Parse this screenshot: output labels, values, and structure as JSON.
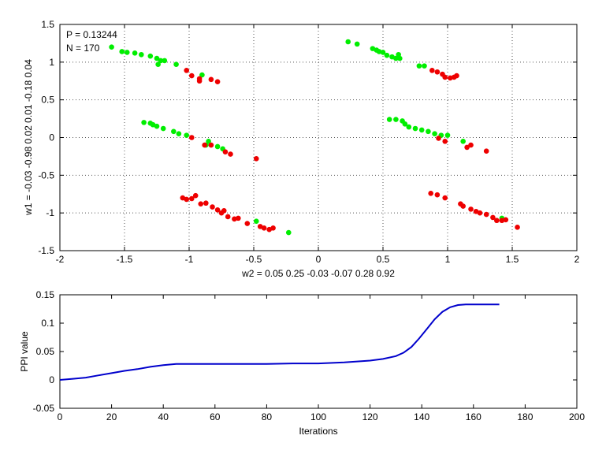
{
  "colors": {
    "background": "#ffffff",
    "green_points": "#00ee00",
    "red_points": "#ee0000",
    "line": "#0000cc",
    "grid": "#555555",
    "axis": "#000000"
  },
  "chart_data": [
    {
      "type": "scatter",
      "title": "",
      "annotations": [
        "P = 0.13244",
        "N = 170"
      ],
      "xlabel": "w2 = 0.05  0.25  -0.03  -0.07  0.28  0.92",
      "ylabel": "w1 = -0.03  -0.98  0.02  0.01  -0.18  0.04",
      "xlim": [
        -2,
        2
      ],
      "ylim": [
        -1.5,
        1.5
      ],
      "xticks": [
        "-2",
        "-1.5",
        "-1",
        "-0.5",
        "0",
        "0.5",
        "1",
        "1.5",
        "2"
      ],
      "yticks": [
        "1.5",
        "1",
        "0.5",
        "0",
        "-0.5",
        "-1",
        "-1.5"
      ],
      "grid": true,
      "series": [
        {
          "color": "green",
          "points": [
            [
              -1.6,
              1.2
            ],
            [
              -1.52,
              1.14
            ],
            [
              -1.48,
              1.13
            ],
            [
              -1.42,
              1.12
            ],
            [
              -1.37,
              1.1
            ],
            [
              -1.3,
              1.08
            ],
            [
              -1.25,
              1.05
            ],
            [
              -1.22,
              1.02
            ],
            [
              -1.24,
              0.97
            ],
            [
              -1.19,
              1.02
            ],
            [
              -1.1,
              0.97
            ],
            [
              -0.9,
              0.83
            ],
            [
              0.23,
              1.27
            ],
            [
              0.3,
              1.24
            ],
            [
              0.42,
              1.18
            ],
            [
              0.45,
              1.16
            ],
            [
              0.47,
              1.14
            ],
            [
              0.5,
              1.13
            ],
            [
              0.53,
              1.09
            ],
            [
              0.57,
              1.07
            ],
            [
              0.6,
              1.05
            ],
            [
              0.62,
              1.1
            ],
            [
              0.63,
              1.05
            ],
            [
              0.78,
              0.95
            ],
            [
              0.82,
              0.95
            ],
            [
              -1.35,
              0.2
            ],
            [
              -1.3,
              0.19
            ],
            [
              -1.28,
              0.17
            ],
            [
              -1.25,
              0.15
            ],
            [
              -1.2,
              0.12
            ],
            [
              -1.12,
              0.08
            ],
            [
              -1.08,
              0.05
            ],
            [
              -1.02,
              0.03
            ],
            [
              -0.85,
              -0.05
            ],
            [
              -0.87,
              -0.1
            ],
            [
              -0.78,
              -0.12
            ],
            [
              -0.74,
              -0.15
            ],
            [
              0.55,
              0.24
            ],
            [
              0.6,
              0.24
            ],
            [
              0.65,
              0.22
            ],
            [
              0.67,
              0.18
            ],
            [
              0.7,
              0.14
            ],
            [
              0.75,
              0.12
            ],
            [
              0.8,
              0.1
            ],
            [
              0.85,
              0.08
            ],
            [
              0.9,
              0.05
            ],
            [
              0.95,
              0.03
            ],
            [
              1.0,
              0.03
            ],
            [
              1.12,
              -0.05
            ],
            [
              -0.48,
              -1.11
            ],
            [
              -0.23,
              -1.26
            ],
            [
              1.42,
              -1.07
            ]
          ]
        },
        {
          "color": "red",
          "points": [
            [
              -1.02,
              0.89
            ],
            [
              -0.98,
              0.82
            ],
            [
              -0.92,
              0.78
            ],
            [
              -0.92,
              0.75
            ],
            [
              -0.83,
              0.77
            ],
            [
              -0.78,
              0.74
            ],
            [
              0.88,
              0.89
            ],
            [
              0.92,
              0.87
            ],
            [
              0.96,
              0.84
            ],
            [
              0.98,
              0.8
            ],
            [
              1.02,
              0.79
            ],
            [
              1.05,
              0.8
            ],
            [
              1.07,
              0.82
            ],
            [
              -0.98,
              0.0
            ],
            [
              -0.88,
              -0.1
            ],
            [
              -0.83,
              -0.1
            ],
            [
              -0.72,
              -0.19
            ],
            [
              -0.68,
              -0.22
            ],
            [
              -0.48,
              -0.28
            ],
            [
              0.93,
              -0.01
            ],
            [
              0.98,
              -0.05
            ],
            [
              1.15,
              -0.13
            ],
            [
              1.18,
              -0.1
            ],
            [
              1.3,
              -0.18
            ],
            [
              -1.05,
              -0.8
            ],
            [
              -1.02,
              -0.82
            ],
            [
              -0.98,
              -0.81
            ],
            [
              -0.95,
              -0.77
            ],
            [
              -0.91,
              -0.88
            ],
            [
              -0.87,
              -0.87
            ],
            [
              -0.82,
              -0.92
            ],
            [
              -0.78,
              -0.96
            ],
            [
              -0.75,
              -1.0
            ],
            [
              -0.73,
              -0.97
            ],
            [
              -0.7,
              -1.05
            ],
            [
              -0.65,
              -1.08
            ],
            [
              -0.62,
              -1.07
            ],
            [
              -0.55,
              -1.14
            ],
            [
              -0.45,
              -1.18
            ],
            [
              -0.42,
              -1.2
            ],
            [
              -0.38,
              -1.22
            ],
            [
              -0.35,
              -1.2
            ],
            [
              0.87,
              -0.74
            ],
            [
              0.92,
              -0.76
            ],
            [
              0.98,
              -0.8
            ],
            [
              1.1,
              -0.88
            ],
            [
              1.12,
              -0.91
            ],
            [
              1.18,
              -0.95
            ],
            [
              1.22,
              -0.98
            ],
            [
              1.25,
              -1.0
            ],
            [
              1.3,
              -1.02
            ],
            [
              1.35,
              -1.06
            ],
            [
              1.38,
              -1.1
            ],
            [
              1.42,
              -1.1
            ],
            [
              1.45,
              -1.09
            ],
            [
              1.54,
              -1.19
            ]
          ]
        }
      ]
    },
    {
      "type": "line",
      "title": "",
      "xlabel": "Iterations",
      "ylabel": "PPI value",
      "xlim": [
        0,
        200
      ],
      "ylim": [
        -0.05,
        0.15
      ],
      "xticks": [
        "0",
        "20",
        "40",
        "60",
        "80",
        "100",
        "120",
        "140",
        "160",
        "180",
        "200"
      ],
      "yticks": [
        "0.15",
        "0.1",
        "0.05",
        "0",
        "-0.05"
      ],
      "grid": false,
      "series": [
        {
          "color": "blue",
          "x": [
            0,
            5,
            10,
            15,
            20,
            25,
            30,
            35,
            40,
            45,
            50,
            60,
            70,
            80,
            90,
            100,
            110,
            120,
            125,
            130,
            133,
            136,
            139,
            142,
            145,
            148,
            151,
            154,
            157,
            160,
            165,
            170
          ],
          "y": [
            0.0,
            0.002,
            0.004,
            0.008,
            0.012,
            0.016,
            0.019,
            0.023,
            0.026,
            0.028,
            0.028,
            0.028,
            0.028,
            0.028,
            0.029,
            0.029,
            0.031,
            0.034,
            0.037,
            0.042,
            0.048,
            0.058,
            0.073,
            0.09,
            0.107,
            0.12,
            0.128,
            0.132,
            0.133,
            0.133,
            0.133,
            0.133
          ]
        }
      ]
    }
  ]
}
